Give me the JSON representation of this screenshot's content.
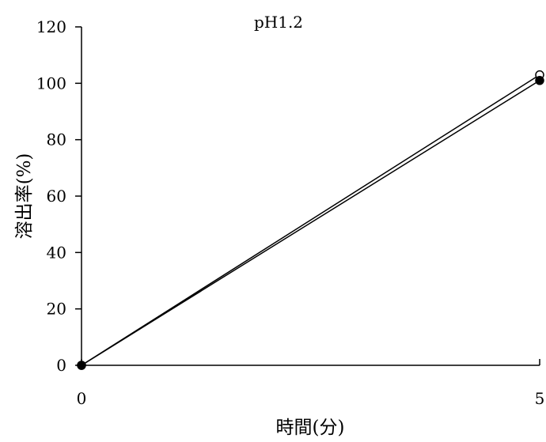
{
  "chart_data": {
    "type": "line",
    "title": "pH1.2",
    "xlabel": "時間(分)",
    "ylabel": "溶出率(%)",
    "x": [
      0,
      5
    ],
    "x_ticks": [
      0,
      5
    ],
    "xlim": [
      0,
      5
    ],
    "ylim": [
      0,
      120
    ],
    "y_ticks": [
      0,
      20,
      40,
      60,
      80,
      100,
      120
    ],
    "grid": false,
    "legend": "none",
    "series": [
      {
        "marker": "open-circle",
        "color": "#000000",
        "values": [
          0,
          103
        ]
      },
      {
        "marker": "filled-circle",
        "color": "#000000",
        "values": [
          0,
          101
        ]
      }
    ]
  }
}
